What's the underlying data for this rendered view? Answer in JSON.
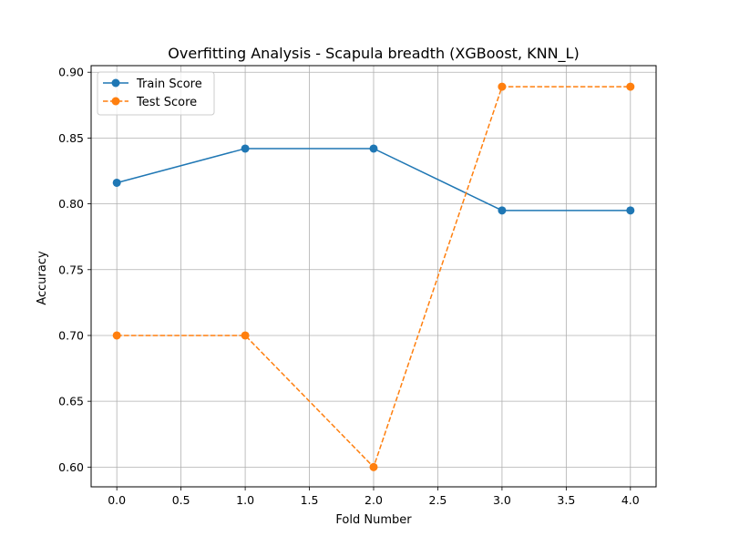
{
  "chart_data": {
    "type": "line",
    "title": "Overfitting Analysis - Scapula breadth (XGBoost, KNN_L)",
    "xlabel": "Fold Number",
    "ylabel": "Accuracy",
    "x": [
      0,
      1,
      2,
      3,
      4
    ],
    "xlim": [
      -0.2,
      4.2
    ],
    "ylim": [
      0.585,
      0.905
    ],
    "xticks": [
      0.0,
      0.5,
      1.0,
      1.5,
      2.0,
      2.5,
      3.0,
      3.5,
      4.0
    ],
    "xtick_labels": [
      "0.0",
      "0.5",
      "1.0",
      "1.5",
      "2.0",
      "2.5",
      "3.0",
      "3.5",
      "4.0"
    ],
    "yticks": [
      0.6,
      0.65,
      0.7,
      0.75,
      0.8,
      0.85,
      0.9
    ],
    "ytick_labels": [
      "0.60",
      "0.65",
      "0.70",
      "0.75",
      "0.80",
      "0.85",
      "0.90"
    ],
    "grid": true,
    "legend_position": "top-left",
    "series": [
      {
        "name": "Train Score",
        "values": [
          0.816,
          0.842,
          0.842,
          0.795,
          0.795
        ],
        "color": "#1f77b4",
        "line_style": "solid",
        "marker": "circle"
      },
      {
        "name": "Test Score",
        "values": [
          0.7,
          0.7,
          0.6,
          0.889,
          0.889
        ],
        "color": "#ff7f0e",
        "line_style": "dashed",
        "marker": "circle"
      }
    ]
  }
}
